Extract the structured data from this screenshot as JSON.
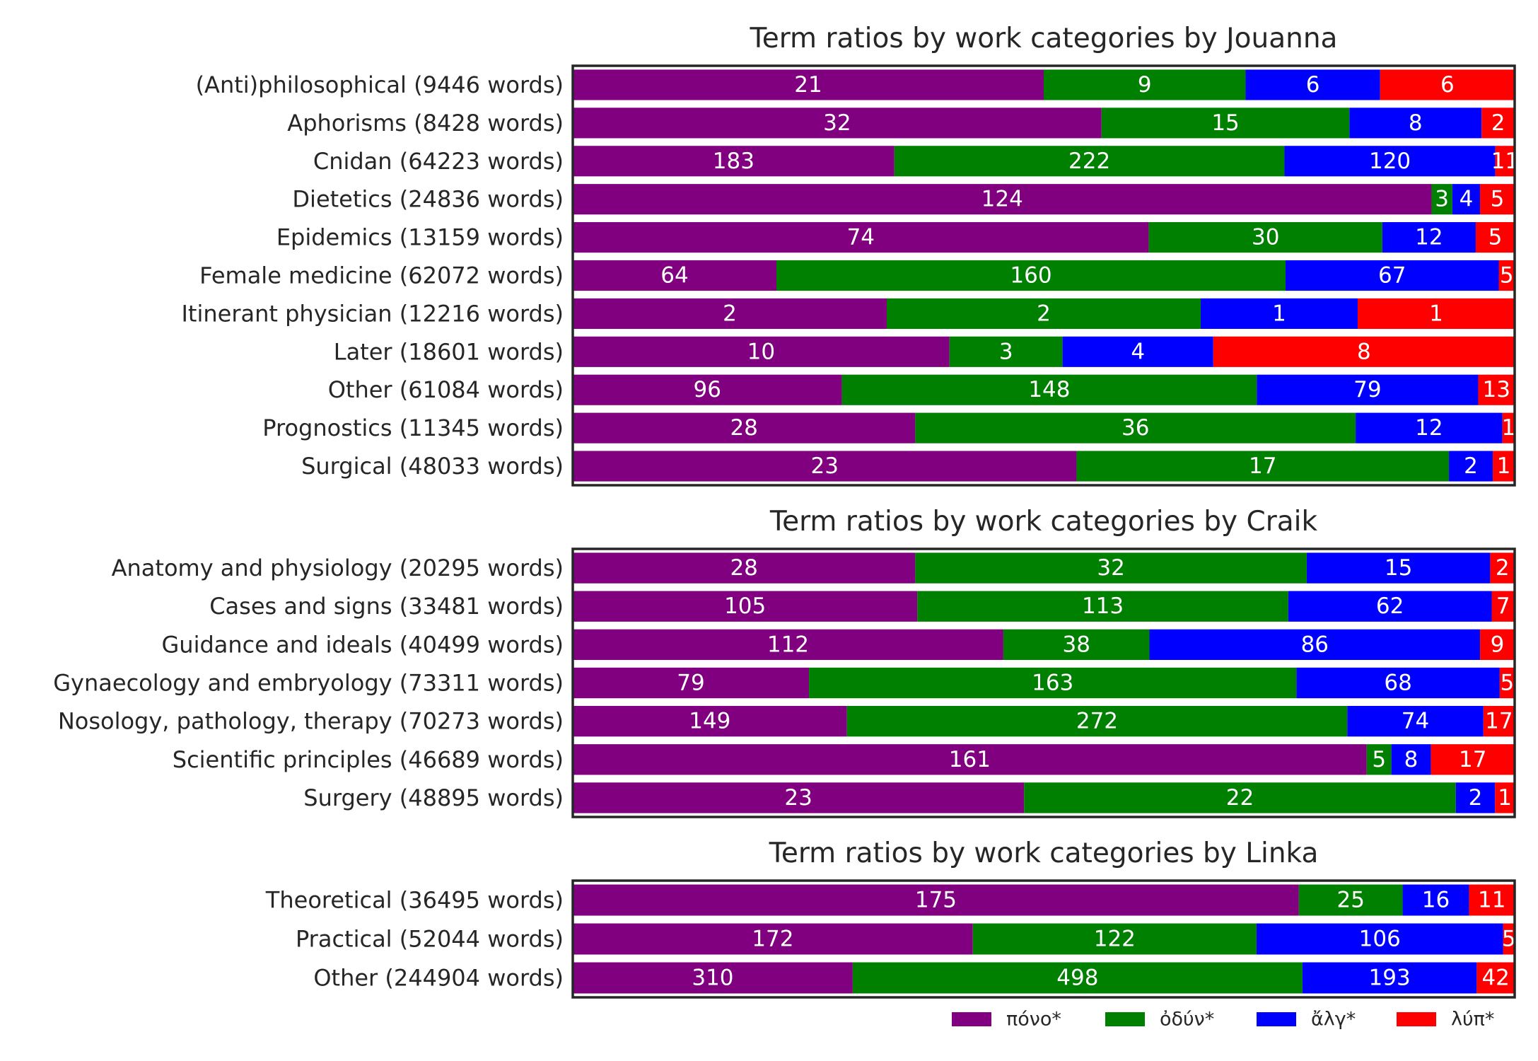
{
  "chart_data": {
    "type": "bar",
    "orientation": "horizontal",
    "stacked": true,
    "normalized": true,
    "series_names": [
      "πόνο*",
      "ὀδύν*",
      "ἄλγ*",
      "λύπ*"
    ],
    "colors": [
      "#800080",
      "#008000",
      "#0000ff",
      "#ff0000"
    ],
    "legend_position": "bottom-right",
    "grid": false,
    "panels": [
      {
        "title": "Term ratios by work categories by Jouanna",
        "categories": [
          "(Anti)philosophical (9446 words)",
          "Aphorisms (8428 words)",
          "Cnidan (64223 words)",
          "Dietetics (24836 words)",
          "Epidemics (13159 words)",
          "Female medicine (62072 words)",
          "Itinerant physician (12216 words)",
          "Later (18601 words)",
          "Other (61084 words)",
          "Prognostics (11345 words)",
          "Surgical (48033 words)"
        ],
        "values": [
          [
            21,
            9,
            6,
            6
          ],
          [
            32,
            15,
            8,
            2
          ],
          [
            183,
            222,
            120,
            11
          ],
          [
            124,
            3,
            4,
            5
          ],
          [
            74,
            30,
            12,
            5
          ],
          [
            64,
            160,
            67,
            5
          ],
          [
            2,
            2,
            1,
            1
          ],
          [
            10,
            3,
            4,
            8
          ],
          [
            96,
            148,
            79,
            13
          ],
          [
            28,
            36,
            12,
            1
          ],
          [
            23,
            17,
            2,
            1
          ]
        ]
      },
      {
        "title": "Term ratios by work categories by Craik",
        "categories": [
          "Anatomy and physiology (20295 words)",
          "Cases and signs (33481 words)",
          "Guidance and ideals (40499 words)",
          "Gynaecology and embryology (73311 words)",
          "Nosology, pathology, therapy (70273 words)",
          "Scientific principles (46689 words)",
          "Surgery (48895 words)"
        ],
        "values": [
          [
            28,
            32,
            15,
            2
          ],
          [
            105,
            113,
            62,
            7
          ],
          [
            112,
            38,
            86,
            9
          ],
          [
            79,
            163,
            68,
            5
          ],
          [
            149,
            272,
            74,
            17
          ],
          [
            161,
            5,
            8,
            17
          ],
          [
            23,
            22,
            2,
            1
          ]
        ]
      },
      {
        "title": "Term ratios by work categories by Linka",
        "categories": [
          "Theoretical (36495 words)",
          "Practical (52044 words)",
          "Other (244904 words)"
        ],
        "values": [
          [
            175,
            25,
            16,
            11
          ],
          [
            172,
            122,
            106,
            5
          ],
          [
            310,
            498,
            193,
            42
          ]
        ]
      }
    ]
  }
}
